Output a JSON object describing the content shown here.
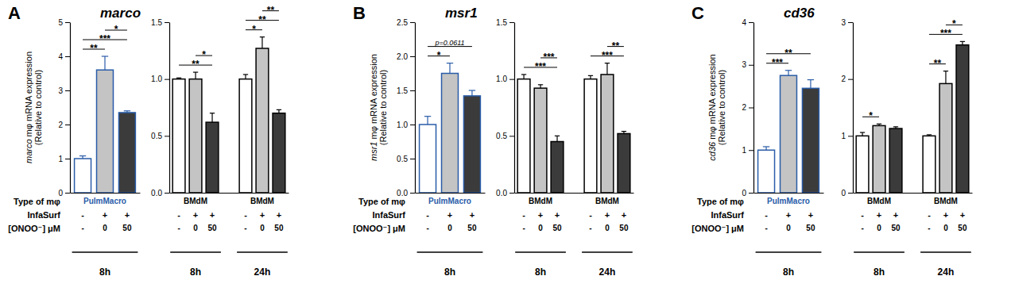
{
  "figure": {
    "panels": [
      {
        "letter": "A",
        "title": "marco"
      },
      {
        "letter": "B",
        "title": "msr1"
      },
      {
        "letter": "C",
        "title": "cd36"
      }
    ]
  },
  "chart_data": [
    {
      "type": "bar",
      "ylabel": [
        "marco mφ mRNA expression",
        "(Relative to control)"
      ],
      "row_labels": [
        "Type of mφ",
        "InfaSurf",
        "[ONOO⁻] μM"
      ],
      "ylim": [
        0,
        5
      ],
      "yticks": [
        0,
        1,
        2,
        3,
        4,
        5
      ],
      "groups": [
        {
          "cell_type": "PulmMacro",
          "time": "8h",
          "size": 3,
          "color": "#2a5ca8"
        }
      ],
      "infasurf": [
        "-",
        "+",
        "+"
      ],
      "categories": [
        "-",
        "0",
        "50"
      ],
      "values": [
        1.0,
        3.6,
        2.35
      ],
      "errors": [
        0.08,
        0.4,
        0.05
      ],
      "colors": [
        "#ffffff",
        "#c4c4c4",
        "#3b3b3b"
      ],
      "annotations": [
        {
          "text": "**",
          "from": 0,
          "to": 1
        },
        {
          "text": "***",
          "from": 0,
          "to": 2
        },
        {
          "text": "*",
          "from": 1,
          "to": 2
        }
      ]
    },
    {
      "type": "bar",
      "ylim": [
        0,
        1.5
      ],
      "yticks": [
        {
          "value": 0,
          "label": "0.0"
        },
        0.5,
        {
          "value": 1,
          "label": "1.0"
        },
        1.5
      ],
      "groups": [
        {
          "cell_type": "BMdM",
          "time": "8h",
          "size": 3,
          "color": "#000000"
        },
        {
          "cell_type": "BMdM",
          "time": "24h",
          "size": 3,
          "color": "#000000"
        }
      ],
      "infasurf": [
        "-",
        "+",
        "+",
        "-",
        "+",
        "+"
      ],
      "categories": [
        "-",
        "0",
        "50",
        "-",
        "0",
        "50"
      ],
      "values": [
        1.0,
        1.0,
        0.62,
        1.0,
        1.27,
        0.7
      ],
      "errors": [
        0.01,
        0.06,
        0.08,
        0.04,
        0.1,
        0.03
      ],
      "colors": [
        "#ffffff",
        "#c4c4c4",
        "#3b3b3b",
        "#ffffff",
        "#c4c4c4",
        "#3b3b3b"
      ],
      "annotations": [
        {
          "text": "**",
          "from": 0,
          "to": 2
        },
        {
          "text": "*",
          "from": 1,
          "to": 2
        },
        {
          "text": "*",
          "from": 3,
          "to": 4
        },
        {
          "text": "**",
          "from": 3,
          "to": 5
        },
        {
          "text": "**",
          "from": 4,
          "to": 5
        }
      ]
    },
    {
      "type": "bar",
      "ylabel": [
        "msr1 mφ mRNA expression",
        "(Relative to control)"
      ],
      "row_labels": [
        "Type of mφ",
        "InfaSurf",
        "[ONOO⁻] μM"
      ],
      "ylim": [
        0,
        2.5
      ],
      "yticks": [
        {
          "value": 0,
          "label": "0.0"
        },
        0.5,
        {
          "value": 1,
          "label": "1.0"
        },
        1.5,
        {
          "value": 2,
          "label": "2.0"
        },
        2.5
      ],
      "groups": [
        {
          "cell_type": "PulmMacro",
          "time": "8h",
          "size": 3,
          "color": "#2a5ca8"
        }
      ],
      "infasurf": [
        "-",
        "+",
        "+"
      ],
      "categories": [
        "-",
        "0",
        "50"
      ],
      "values": [
        1.0,
        1.75,
        1.42
      ],
      "errors": [
        0.12,
        0.15,
        0.08
      ],
      "colors": [
        "#ffffff",
        "#c4c4c4",
        "#3b3b3b"
      ],
      "annotations": [
        {
          "text": "*",
          "from": 0,
          "to": 1
        },
        {
          "text": "p=0.0611",
          "from": 0,
          "to": 2
        }
      ]
    },
    {
      "type": "bar",
      "ylim": [
        0,
        1.5
      ],
      "yticks": [
        {
          "value": 0,
          "label": "0.0"
        },
        0.5,
        {
          "value": 1,
          "label": "1.0"
        },
        1.5
      ],
      "groups": [
        {
          "cell_type": "BMdM",
          "time": "8h",
          "size": 3,
          "color": "#000000"
        },
        {
          "cell_type": "BMdM",
          "time": "24h",
          "size": 3,
          "color": "#000000"
        }
      ],
      "infasurf": [
        "-",
        "+",
        "+",
        "-",
        "+",
        "+"
      ],
      "categories": [
        "-",
        "0",
        "50",
        "-",
        "0",
        "50"
      ],
      "values": [
        1.0,
        0.92,
        0.45,
        1.0,
        1.04,
        0.52
      ],
      "errors": [
        0.04,
        0.03,
        0.05,
        0.03,
        0.1,
        0.02
      ],
      "colors": [
        "#ffffff",
        "#c4c4c4",
        "#3b3b3b",
        "#ffffff",
        "#c4c4c4",
        "#3b3b3b"
      ],
      "annotations": [
        {
          "text": "***",
          "from": 0,
          "to": 2
        },
        {
          "text": "***",
          "from": 1,
          "to": 2
        },
        {
          "text": "***",
          "from": 3,
          "to": 5
        },
        {
          "text": "**",
          "from": 4,
          "to": 5
        }
      ]
    },
    {
      "type": "bar",
      "ylabel": [
        "cd36 mφ mRNA expression",
        "(Relative to control)"
      ],
      "row_labels": [
        "Type of mφ",
        "InfaSurf",
        "[ONOO⁻] μM"
      ],
      "ylim": [
        0,
        4
      ],
      "yticks": [
        0,
        1,
        2,
        3,
        4
      ],
      "groups": [
        {
          "cell_type": "PulmMacro",
          "time": "8h",
          "size": 3,
          "color": "#2a5ca8"
        }
      ],
      "infasurf": [
        "-",
        "+",
        "+"
      ],
      "categories": [
        "-",
        "0",
        "50"
      ],
      "values": [
        1.0,
        2.75,
        2.45
      ],
      "errors": [
        0.08,
        0.12,
        0.2
      ],
      "colors": [
        "#ffffff",
        "#c4c4c4",
        "#3b3b3b"
      ],
      "annotations": [
        {
          "text": "***",
          "from": 0,
          "to": 1
        },
        {
          "text": "**",
          "from": 0,
          "to": 2
        }
      ]
    },
    {
      "type": "bar",
      "ylim": [
        0,
        3
      ],
      "yticks": [
        0,
        1,
        2,
        3
      ],
      "groups": [
        {
          "cell_type": "BMdM",
          "time": "8h",
          "size": 3,
          "color": "#000000"
        },
        {
          "cell_type": "BMdM",
          "time": "24h",
          "size": 3,
          "color": "#000000"
        }
      ],
      "infasurf": [
        "-",
        "+",
        "+",
        "-",
        "+",
        "+"
      ],
      "categories": [
        "-",
        "0",
        "50",
        "-",
        "0",
        "50"
      ],
      "values": [
        1.0,
        1.18,
        1.13,
        1.0,
        1.92,
        2.6
      ],
      "errors": [
        0.06,
        0.03,
        0.03,
        0.02,
        0.22,
        0.06
      ],
      "colors": [
        "#ffffff",
        "#c4c4c4",
        "#3b3b3b",
        "#ffffff",
        "#c4c4c4",
        "#3b3b3b"
      ],
      "annotations": [
        {
          "text": "*",
          "from": 0,
          "to": 1
        },
        {
          "text": "**",
          "from": 3,
          "to": 4
        },
        {
          "text": "***",
          "from": 3,
          "to": 5
        },
        {
          "text": "*",
          "from": 4,
          "to": 5
        }
      ]
    }
  ]
}
